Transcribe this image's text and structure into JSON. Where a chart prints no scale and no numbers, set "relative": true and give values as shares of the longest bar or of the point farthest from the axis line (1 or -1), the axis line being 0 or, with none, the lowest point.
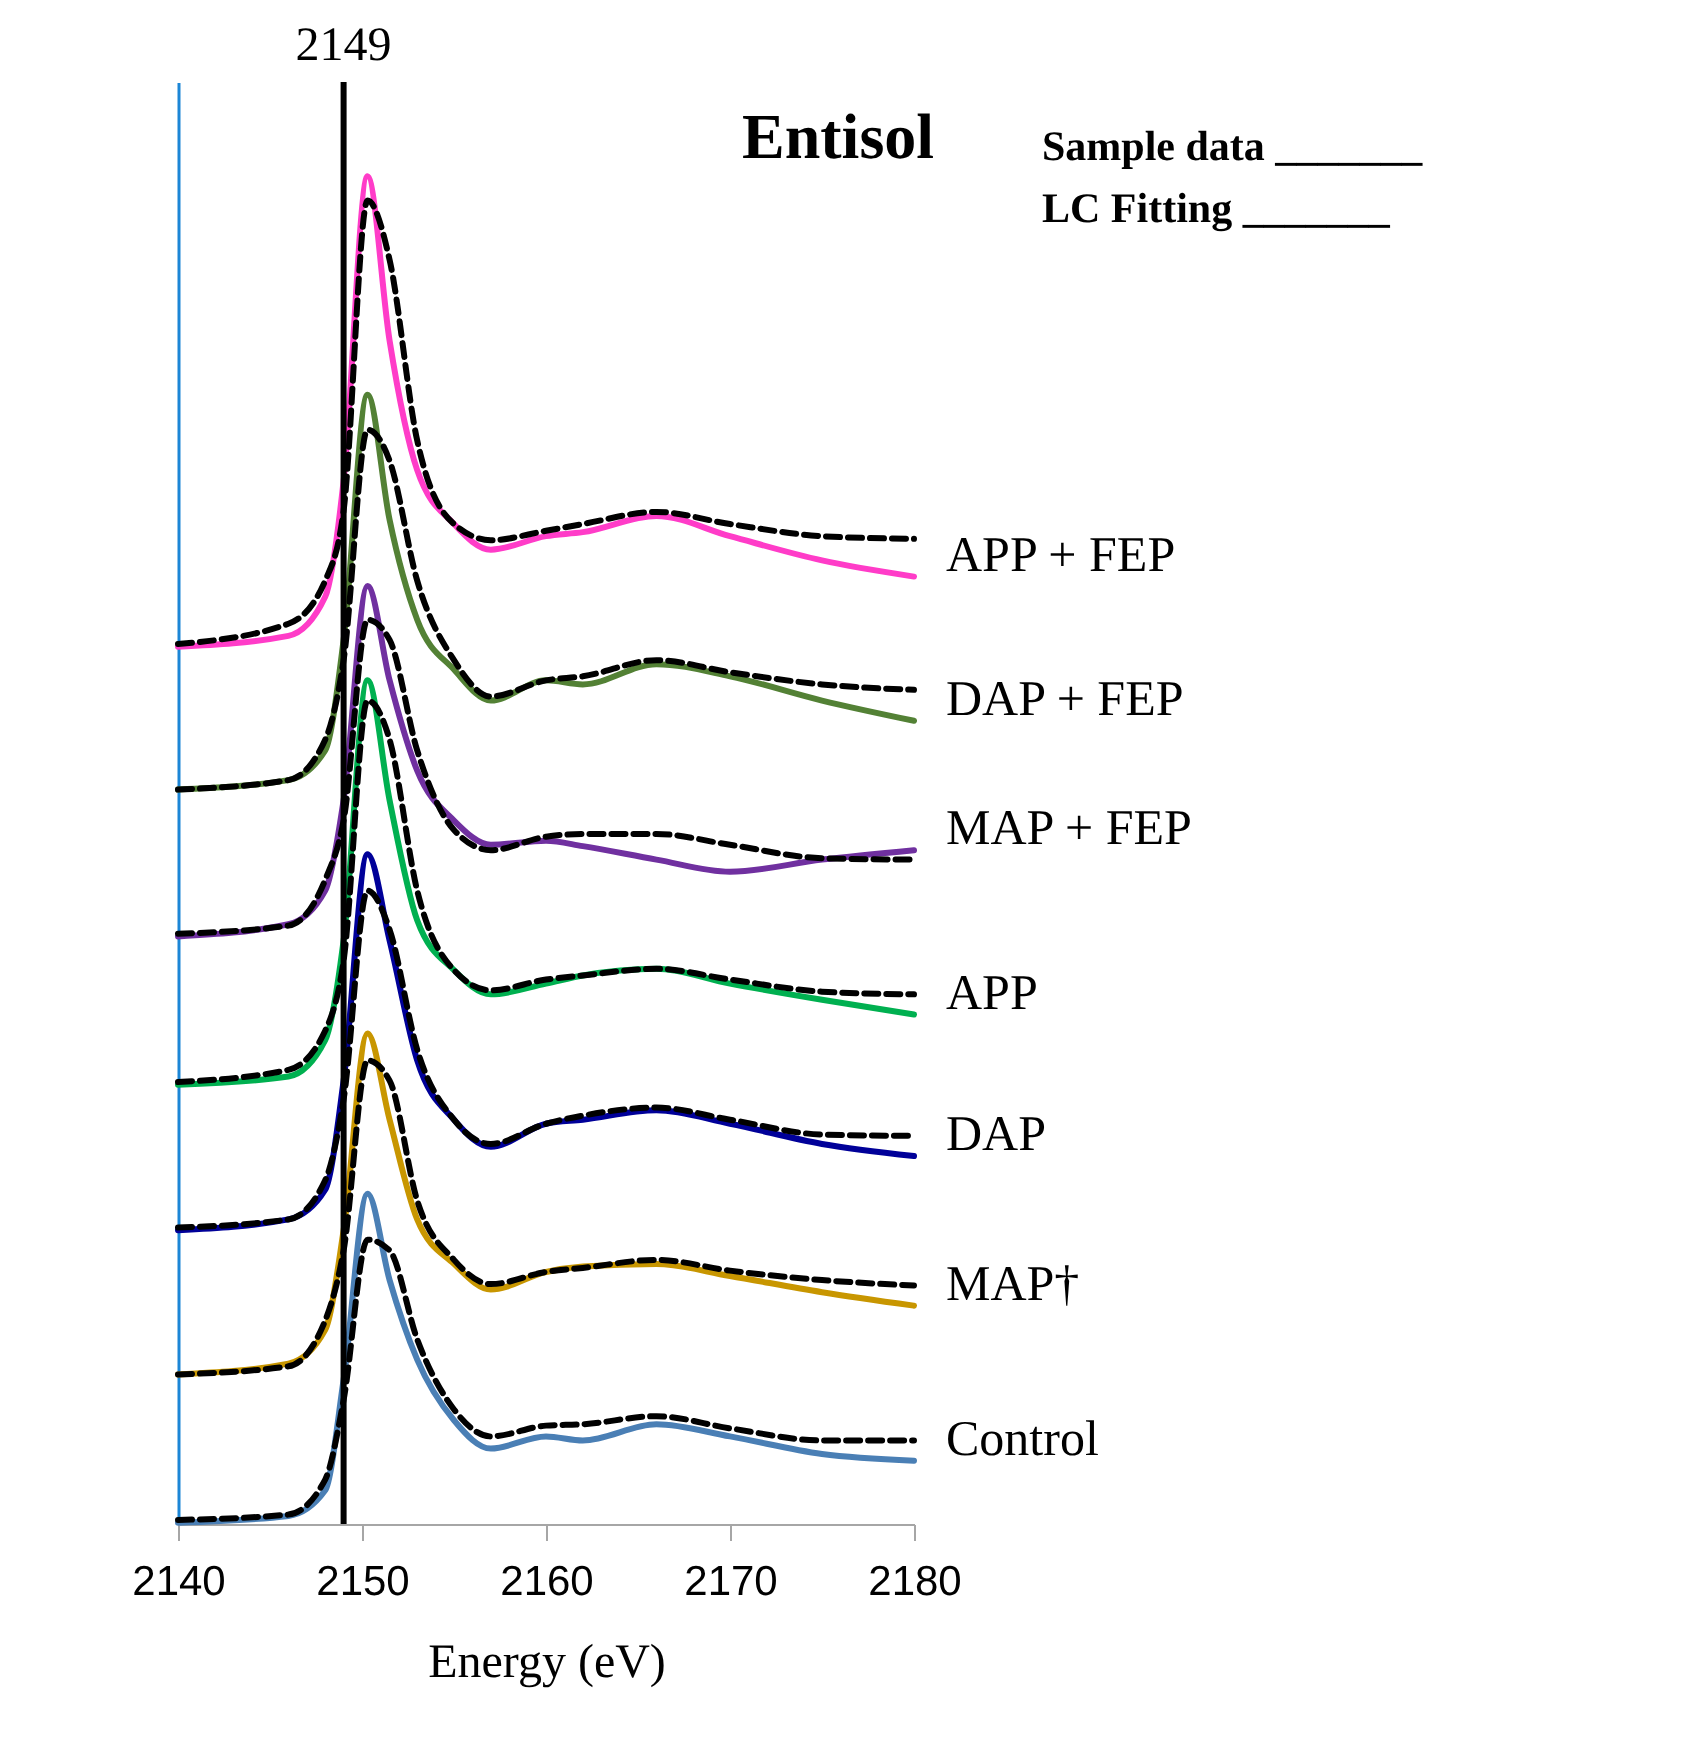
{
  "chart_data": {
    "type": "line",
    "title": "Entisol",
    "xlabel": "Energy (eV)",
    "relative": true,
    "x": [
      2140,
      2146,
      2148,
      2149,
      2150.3,
      2151.5,
      2153,
      2155,
      2157,
      2160,
      2162,
      2166,
      2170,
      2175,
      2180
    ],
    "xlim": [
      2140,
      2180
    ],
    "xticks": [
      2140,
      2150,
      2160,
      2170,
      2180
    ],
    "annotations": [
      "Sample data _______",
      "LC Fitting _______"
    ],
    "ref_lines": [
      {
        "axis": "x",
        "value": 2149,
        "label": "2149",
        "color": "#000000"
      }
    ],
    "series": [
      {
        "name": "APP + FEP",
        "color": "#ff3cc8",
        "line_style": "solid",
        "values": [
          0.651,
          0.659,
          0.688,
          0.774,
          1,
          0.878,
          0.782,
          0.742,
          0.723,
          0.733,
          0.736,
          0.748,
          0.733,
          0.715,
          0.703
        ]
      },
      {
        "color": "#000000",
        "line_style": "dashed",
        "values": [
          0.653,
          0.668,
          0.7,
          0.752,
          0.982,
          0.938,
          0.804,
          0.742,
          0.73,
          0.737,
          0.742,
          0.751,
          0.742,
          0.733,
          0.731
        ]
      },
      {
        "name": "DAP + FEP",
        "color": "#538135",
        "line_style": "solid",
        "values": [
          0.545,
          0.552,
          0.574,
          0.656,
          0.838,
          0.745,
          0.671,
          0.634,
          0.611,
          0.626,
          0.623,
          0.638,
          0.629,
          0.611,
          0.596
        ]
      },
      {
        "color": "#000000",
        "line_style": "dashed",
        "values": [
          0.545,
          0.552,
          0.582,
          0.641,
          0.812,
          0.789,
          0.7,
          0.641,
          0.614,
          0.626,
          0.629,
          0.641,
          0.632,
          0.623,
          0.619
        ]
      },
      {
        "name": "MAP + FEP",
        "color": "#7030a0",
        "line_style": "solid",
        "values": [
          0.436,
          0.445,
          0.47,
          0.537,
          0.696,
          0.626,
          0.559,
          0.522,
          0.504,
          0.507,
          0.503,
          0.493,
          0.484,
          0.493,
          0.5
        ]
      },
      {
        "color": "#000000",
        "line_style": "dashed",
        "values": [
          0.438,
          0.444,
          0.478,
          0.522,
          0.671,
          0.656,
          0.574,
          0.515,
          0.5,
          0.51,
          0.512,
          0.512,
          0.504,
          0.494,
          0.493
        ]
      },
      {
        "name": "APP",
        "color": "#00b050",
        "line_style": "solid",
        "values": [
          0.326,
          0.332,
          0.359,
          0.433,
          0.626,
          0.537,
          0.448,
          0.411,
          0.393,
          0.401,
          0.407,
          0.412,
          0.401,
          0.389,
          0.378
        ]
      },
      {
        "color": "#000000",
        "line_style": "dashed",
        "values": [
          0.328,
          0.337,
          0.366,
          0.418,
          0.611,
          0.582,
          0.47,
          0.411,
          0.396,
          0.404,
          0.407,
          0.412,
          0.404,
          0.395,
          0.393
        ]
      },
      {
        "name": "DAP",
        "color": "#000099",
        "line_style": "solid",
        "values": [
          0.218,
          0.226,
          0.248,
          0.329,
          0.497,
          0.433,
          0.344,
          0.3,
          0.28,
          0.297,
          0.3,
          0.307,
          0.297,
          0.282,
          0.273
        ]
      },
      {
        "color": "#000000",
        "line_style": "dashed",
        "values": [
          0.22,
          0.226,
          0.255,
          0.315,
          0.47,
          0.441,
          0.352,
          0.3,
          0.282,
          0.297,
          0.303,
          0.309,
          0.3,
          0.289,
          0.288
        ]
      },
      {
        "name": "MAP†",
        "color": "#c89600",
        "line_style": "solid",
        "values": [
          0.111,
          0.119,
          0.144,
          0.218,
          0.364,
          0.3,
          0.226,
          0.193,
          0.174,
          0.187,
          0.191,
          0.193,
          0.184,
          0.172,
          0.162
        ]
      },
      {
        "color": "#000000",
        "line_style": "dashed",
        "values": [
          0.111,
          0.117,
          0.151,
          0.203,
          0.344,
          0.329,
          0.24,
          0.196,
          0.178,
          0.187,
          0.19,
          0.196,
          0.188,
          0.181,
          0.177
        ]
      },
      {
        "name": "Control",
        "color": "#4a7fb5",
        "line_style": "solid",
        "values": [
          0.001,
          0.006,
          0.025,
          0.107,
          0.245,
          0.181,
          0.122,
          0.077,
          0.056,
          0.065,
          0.062,
          0.074,
          0.065,
          0.052,
          0.047
        ]
      },
      {
        "color": "#000000",
        "line_style": "dashed",
        "values": [
          0.003,
          0.007,
          0.033,
          0.092,
          0.211,
          0.203,
          0.137,
          0.085,
          0.065,
          0.073,
          0.074,
          0.08,
          0.071,
          0.062,
          0.062
        ]
      }
    ]
  }
}
